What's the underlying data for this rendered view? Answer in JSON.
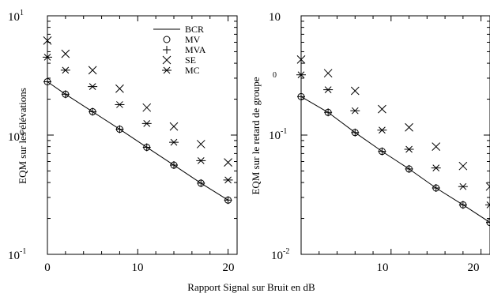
{
  "xlabel": "Rapport Signal sur Bruit en dB",
  "legend": {
    "entries": [
      {
        "label": "BCR",
        "marker": "line"
      },
      {
        "label": "MV",
        "marker": "circle"
      },
      {
        "label": "MVA",
        "marker": "plus"
      },
      {
        "label": "SE",
        "marker": "cross"
      },
      {
        "label": "MC",
        "marker": "asterisk"
      }
    ]
  },
  "chart_data": [
    {
      "type": "scatter",
      "panel": "left",
      "ylabel": "EQM sur les élévations",
      "yscale": "log",
      "xlim": [
        0,
        21
      ],
      "ylim": [
        0.1,
        10
      ],
      "xticks": [
        0,
        10,
        20
      ],
      "yticks": [
        {
          "base": "10",
          "exp": "-1",
          "value": 0.1
        },
        {
          "base": "10",
          "exp": "0",
          "value": 1
        },
        {
          "base": "10",
          "exp": "1",
          "value": 10
        }
      ],
      "x": [
        0,
        2,
        5,
        8,
        11,
        14,
        17,
        20
      ],
      "series": [
        {
          "name": "BCR",
          "style": "line",
          "values": [
            2.8,
            2.2,
            1.57,
            1.12,
            0.79,
            0.56,
            0.395,
            0.285
          ]
        },
        {
          "name": "MV",
          "style": "circle",
          "values": [
            2.8,
            2.2,
            1.57,
            1.12,
            0.79,
            0.56,
            0.395,
            0.285
          ]
        },
        {
          "name": "MVA",
          "style": "plus",
          "values": [
            2.8,
            2.2,
            1.57,
            1.12,
            0.79,
            0.56,
            0.395,
            0.285
          ]
        },
        {
          "name": "SE",
          "style": "cross",
          "values": [
            6.2,
            4.8,
            3.5,
            2.45,
            1.7,
            1.18,
            0.84,
            0.59
          ]
        },
        {
          "name": "MC",
          "style": "asterisk",
          "values": [
            4.5,
            3.5,
            2.55,
            1.8,
            1.25,
            0.87,
            0.61,
            0.42
          ]
        }
      ]
    },
    {
      "type": "scatter",
      "panel": "right",
      "ylabel": "EQM sur le retard de groupe",
      "yscale": "log",
      "xlim": [
        0,
        21
      ],
      "ylim": [
        0.01,
        1
      ],
      "xticks": [
        10,
        20
      ],
      "yticks": [
        {
          "base": "10",
          "exp": "-2",
          "value": 0.01
        },
        {
          "base": "10",
          "exp": "-1",
          "value": 0.1
        },
        {
          "base": "10",
          "exp": "0",
          "value": 1
        }
      ],
      "x": [
        0,
        3,
        6,
        9,
        12,
        15,
        18,
        21
      ],
      "series": [
        {
          "name": "BCR",
          "style": "line",
          "values": [
            0.21,
            0.155,
            0.105,
            0.073,
            0.052,
            0.036,
            0.026,
            0.0185
          ]
        },
        {
          "name": "MV",
          "style": "circle",
          "values": [
            0.21,
            0.155,
            0.105,
            0.073,
            0.052,
            0.036,
            0.026,
            0.0185
          ]
        },
        {
          "name": "MVA",
          "style": "plus",
          "values": [
            0.21,
            0.155,
            0.105,
            0.073,
            0.052,
            0.036,
            0.026,
            0.0185
          ]
        },
        {
          "name": "SE",
          "style": "cross",
          "values": [
            0.43,
            0.33,
            0.235,
            0.165,
            0.116,
            0.08,
            0.055,
            0.037
          ]
        },
        {
          "name": "MC",
          "style": "asterisk",
          "values": [
            0.32,
            0.24,
            0.16,
            0.11,
            0.076,
            0.053,
            0.037,
            0.026
          ]
        }
      ]
    }
  ]
}
